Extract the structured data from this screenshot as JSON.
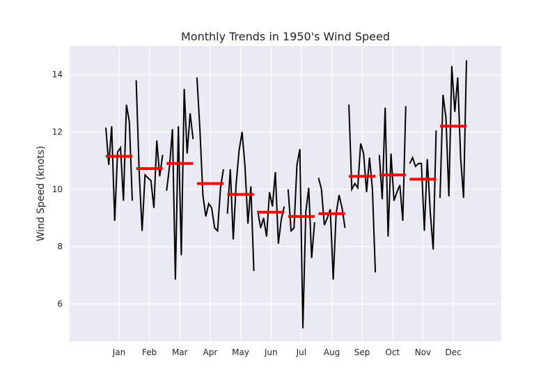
{
  "chart_data": {
    "type": "line",
    "title": "Monthly Trends in 1950's Wind Speed",
    "xlabel": "",
    "ylabel": "Wind Speed (knots)",
    "ylim": [
      4.7,
      15.0
    ],
    "yticks": [
      6,
      8,
      10,
      12,
      14
    ],
    "grid": true,
    "background": "#eaeaf2",
    "grid_color": "#ffffff",
    "series_color": "#000000",
    "mean_color": "#ff0000",
    "months": [
      {
        "label": "Jan",
        "mean": 11.15,
        "values": [
          12.15,
          10.85,
          12.2,
          8.9,
          11.3,
          11.45,
          9.6,
          12.95,
          12.35,
          9.6
        ]
      },
      {
        "label": "Feb",
        "mean": 10.72,
        "values": [
          13.8,
          10.6,
          8.55,
          10.5,
          10.4,
          10.3,
          9.35,
          11.7,
          10.45,
          11.2
        ]
      },
      {
        "label": "Mar",
        "mean": 10.9,
        "values": [
          9.95,
          10.8,
          12.1,
          6.85,
          12.2,
          7.7,
          13.5,
          11.25,
          12.65,
          11.75
        ]
      },
      {
        "label": "Apr",
        "mean": 10.2,
        "values": [
          13.9,
          12.1,
          9.8,
          9.05,
          9.5,
          9.35,
          8.65,
          8.55,
          10.05,
          10.7
        ]
      },
      {
        "label": "May",
        "mean": 9.82,
        "values": [
          9.15,
          10.7,
          8.25,
          10.2,
          11.35,
          12.0,
          10.8,
          8.8,
          10.1,
          7.15
        ]
      },
      {
        "label": "Jun",
        "mean": 9.2,
        "values": [
          9.25,
          8.65,
          9.0,
          8.35,
          9.9,
          9.4,
          10.6,
          8.1,
          8.95,
          9.4
        ]
      },
      {
        "label": "Jul",
        "mean": 9.05,
        "values": [
          10.0,
          8.55,
          8.65,
          10.85,
          11.4,
          5.15,
          9.2,
          10.05,
          7.6,
          8.85
        ]
      },
      {
        "label": "Aug",
        "mean": 9.15,
        "values": [
          10.4,
          10.0,
          8.75,
          9.0,
          9.3,
          6.85,
          9.15,
          9.8,
          9.35,
          8.65
        ]
      },
      {
        "label": "Sep",
        "mean": 10.45,
        "values": [
          12.95,
          10.0,
          10.2,
          10.05,
          11.6,
          11.25,
          9.9,
          11.1,
          10.0,
          7.1
        ]
      },
      {
        "label": "Oct",
        "mean": 10.5,
        "values": [
          11.2,
          9.65,
          12.85,
          8.35,
          11.25,
          9.6,
          9.9,
          10.15,
          8.9,
          12.9
        ]
      },
      {
        "label": "Nov",
        "mean": 10.35,
        "values": [
          10.9,
          11.1,
          10.8,
          10.9,
          10.9,
          8.55,
          11.05,
          9.2,
          7.9,
          12.05
        ]
      },
      {
        "label": "Dec",
        "mean": 12.2,
        "values": [
          9.7,
          13.3,
          12.5,
          9.75,
          14.3,
          12.7,
          13.9,
          11.1,
          9.7,
          14.5
        ]
      }
    ]
  }
}
